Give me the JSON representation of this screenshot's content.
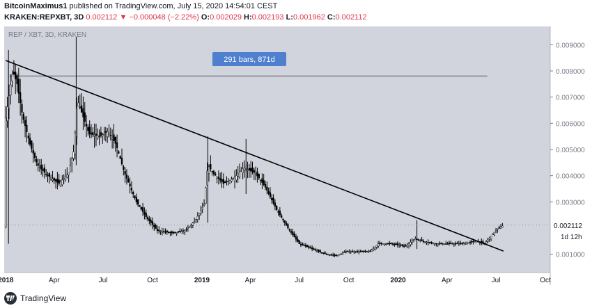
{
  "header": {
    "author": "BitcoinMaximus1",
    "published": "published on TradingView.com, July 15, 2020 14:54:01 CEST",
    "symbol": "KRAKEN:REPXBT, 3D",
    "last": "0.002112",
    "arrow": "▼",
    "change": "−0.000048 (−2.22%)",
    "o_label": "O:",
    "o_value": "0.002029",
    "h_label": "H:",
    "h_value": "0.002193",
    "l_label": "L:",
    "l_value": "0.001962",
    "c_label": "C:",
    "c_value": "0.002112"
  },
  "chart_data": {
    "type": "candlestick",
    "title": "REP / XBT, 3D, KRAKEN",
    "y_ticks": [
      "0.009000",
      "0.008000",
      "0.007000",
      "0.006000",
      "0.005000",
      "0.004000",
      "0.003000",
      "0.001000"
    ],
    "x_ticks": [
      "2018",
      "Apr",
      "Jul",
      "Oct",
      "2019",
      "Apr",
      "Jul",
      "Oct",
      "2020",
      "Apr",
      "Jul",
      "Oct"
    ],
    "x_bold": [
      "2018",
      "2019",
      "2020"
    ],
    "ylim": [
      0.0003,
      0.0097
    ],
    "last_price_label": "0.002112",
    "countdown_label": "1d 12h",
    "measure_label": "291 bars, 871d",
    "measure_level": 0.0078,
    "trendline": {
      "from": [
        "2018-01-01",
        0.0084
      ],
      "to": [
        "2020-07-15",
        0.00112
      ]
    },
    "price_path": [
      [
        "2018-01-01",
        0.0062
      ],
      [
        "2018-01-08",
        0.0072
      ],
      [
        "2018-01-14",
        0.008
      ],
      [
        "2018-01-22",
        0.0075
      ],
      [
        "2018-02-01",
        0.0063
      ],
      [
        "2018-02-15",
        0.0052
      ],
      [
        "2018-03-01",
        0.0044
      ],
      [
        "2018-03-20",
        0.004
      ],
      [
        "2018-04-10",
        0.0037
      ],
      [
        "2018-04-28",
        0.0041
      ],
      [
        "2018-05-08",
        0.005
      ],
      [
        "2018-05-14",
        0.0069
      ],
      [
        "2018-05-24",
        0.0063
      ],
      [
        "2018-06-05",
        0.0056
      ],
      [
        "2018-06-25",
        0.0055
      ],
      [
        "2018-07-10",
        0.0057
      ],
      [
        "2018-07-25",
        0.0052
      ],
      [
        "2018-08-10",
        0.0041
      ],
      [
        "2018-09-01",
        0.003
      ],
      [
        "2018-09-20",
        0.0024
      ],
      [
        "2018-10-10",
        0.0019
      ],
      [
        "2018-11-10",
        0.0018
      ],
      [
        "2018-12-01",
        0.0019
      ],
      [
        "2018-12-20",
        0.0023
      ],
      [
        "2019-01-05",
        0.0029
      ],
      [
        "2019-01-12",
        0.0044
      ],
      [
        "2019-01-22",
        0.0041
      ],
      [
        "2019-02-10",
        0.0037
      ],
      [
        "2019-03-01",
        0.0039
      ],
      [
        "2019-03-20",
        0.0043
      ],
      [
        "2019-04-10",
        0.0041
      ],
      [
        "2019-04-28",
        0.0036
      ],
      [
        "2019-05-20",
        0.0027
      ],
      [
        "2019-06-10",
        0.002
      ],
      [
        "2019-07-01",
        0.0014
      ],
      [
        "2019-07-25",
        0.0012
      ],
      [
        "2019-08-20",
        0.001
      ],
      [
        "2019-09-10",
        0.00095
      ],
      [
        "2019-09-25",
        0.0011
      ],
      [
        "2019-10-20",
        0.0011
      ],
      [
        "2019-11-10",
        0.0011
      ],
      [
        "2019-11-25",
        0.0014
      ],
      [
        "2019-12-20",
        0.0014
      ],
      [
        "2020-01-15",
        0.0013
      ],
      [
        "2020-02-01",
        0.0016
      ],
      [
        "2020-02-15",
        0.0015
      ],
      [
        "2020-03-10",
        0.0014
      ],
      [
        "2020-04-01",
        0.0014
      ],
      [
        "2020-05-01",
        0.0014
      ],
      [
        "2020-05-25",
        0.0015
      ],
      [
        "2020-06-10",
        0.0014
      ],
      [
        "2020-06-22",
        0.0017
      ],
      [
        "2020-07-05",
        0.002
      ],
      [
        "2020-07-15",
        0.0021
      ]
    ]
  },
  "footer": {
    "brand": "TradingView"
  },
  "colors": {
    "plot_bg": "#d1d4dc",
    "candle": "#000000",
    "trendline": "#000000",
    "measure_bg": "#4f7fcf",
    "price_label_bg": "#ffffff"
  }
}
